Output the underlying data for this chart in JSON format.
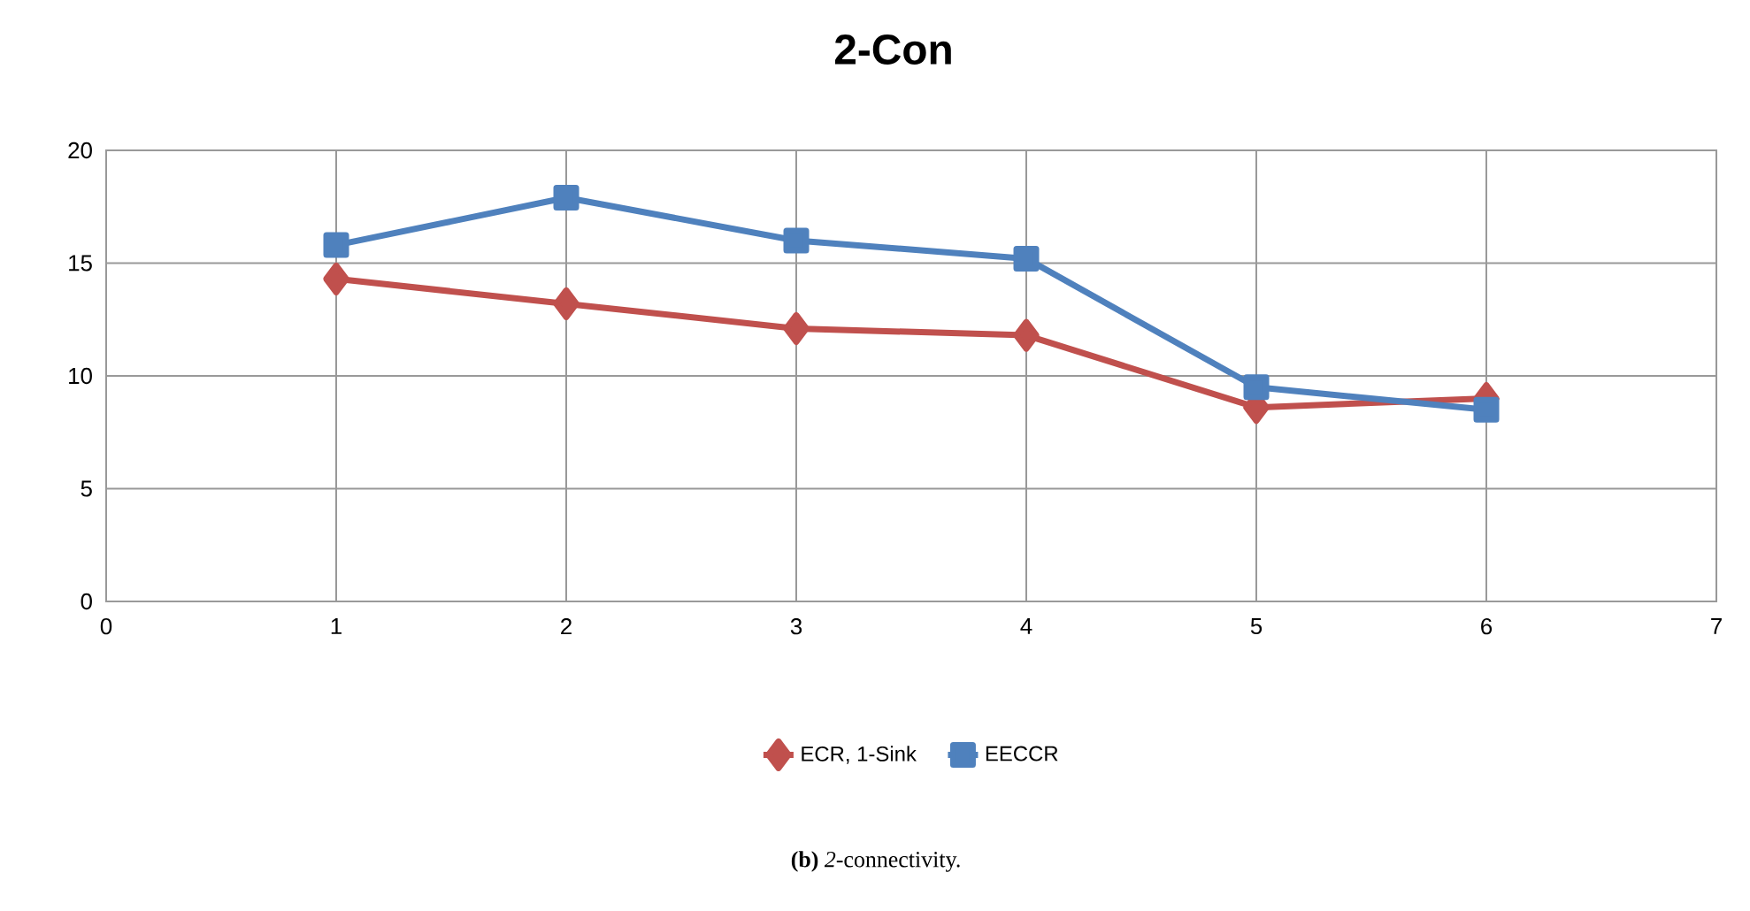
{
  "chart_data": {
    "type": "line",
    "title": "2-Con",
    "x": [
      1,
      2,
      3,
      4,
      5,
      6
    ],
    "series": [
      {
        "name": "ECR, 1-Sink",
        "color": "#c0504d",
        "marker": "diamond",
        "values": [
          14.3,
          13.2,
          12.1,
          11.8,
          8.6,
          9.0
        ]
      },
      {
        "name": "EECCR",
        "color": "#4f81bd",
        "marker": "square",
        "values": [
          15.8,
          17.9,
          16.0,
          15.2,
          9.5,
          8.5
        ]
      }
    ],
    "xlim": [
      0,
      7
    ],
    "xticks": [
      0,
      1,
      2,
      3,
      4,
      5,
      6,
      7
    ],
    "ylim": [
      0,
      20
    ],
    "yticks": [
      0,
      5,
      10,
      15,
      20
    ],
    "grid": true,
    "legend": "bottom",
    "line_style": "solid",
    "annotations": [
      "**(b)** *2*-connectivity."
    ]
  }
}
